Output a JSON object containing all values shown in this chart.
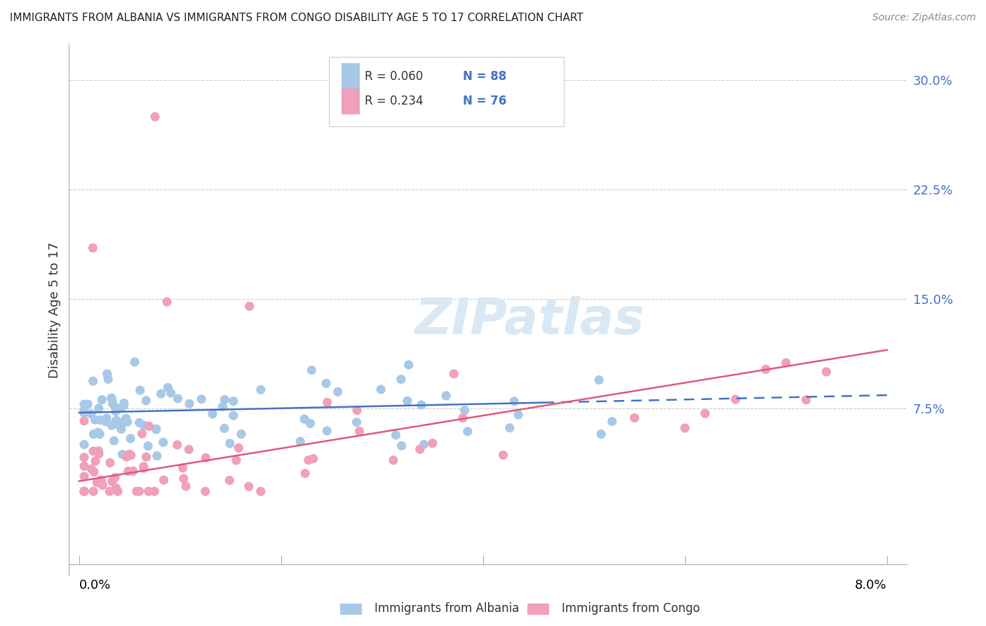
{
  "title": "IMMIGRANTS FROM ALBANIA VS IMMIGRANTS FROM CONGO DISABILITY AGE 5 TO 17 CORRELATION CHART",
  "source": "Source: ZipAtlas.com",
  "ylabel": "Disability Age 5 to 17",
  "xlim": [
    0.0,
    0.08
  ],
  "ylim": [
    -0.04,
    0.32
  ],
  "ytick_vals": [
    0.075,
    0.15,
    0.225,
    0.3
  ],
  "ytick_labels": [
    "7.5%",
    "15.0%",
    "22.5%",
    "30.0%"
  ],
  "xtick_positions": [
    0.0,
    0.02,
    0.04,
    0.06,
    0.08
  ],
  "xtick_labels": [
    "0.0%",
    "",
    "",
    "",
    "8.0%"
  ],
  "legend_labels": [
    "Immigrants from Albania",
    "Immigrants from Congo"
  ],
  "albania_color": "#a8c8e8",
  "congo_color": "#f0a0b8",
  "albania_line_color": "#4472c4",
  "congo_line_color": "#e05878",
  "watermark_color": "#d8e8f4",
  "albania_R": "0.060",
  "albania_N": "88",
  "congo_R": "0.234",
  "congo_N": "76",
  "alb_slope": 0.15,
  "alb_intercept": 0.072,
  "con_slope": 1.125,
  "con_intercept": 0.025
}
